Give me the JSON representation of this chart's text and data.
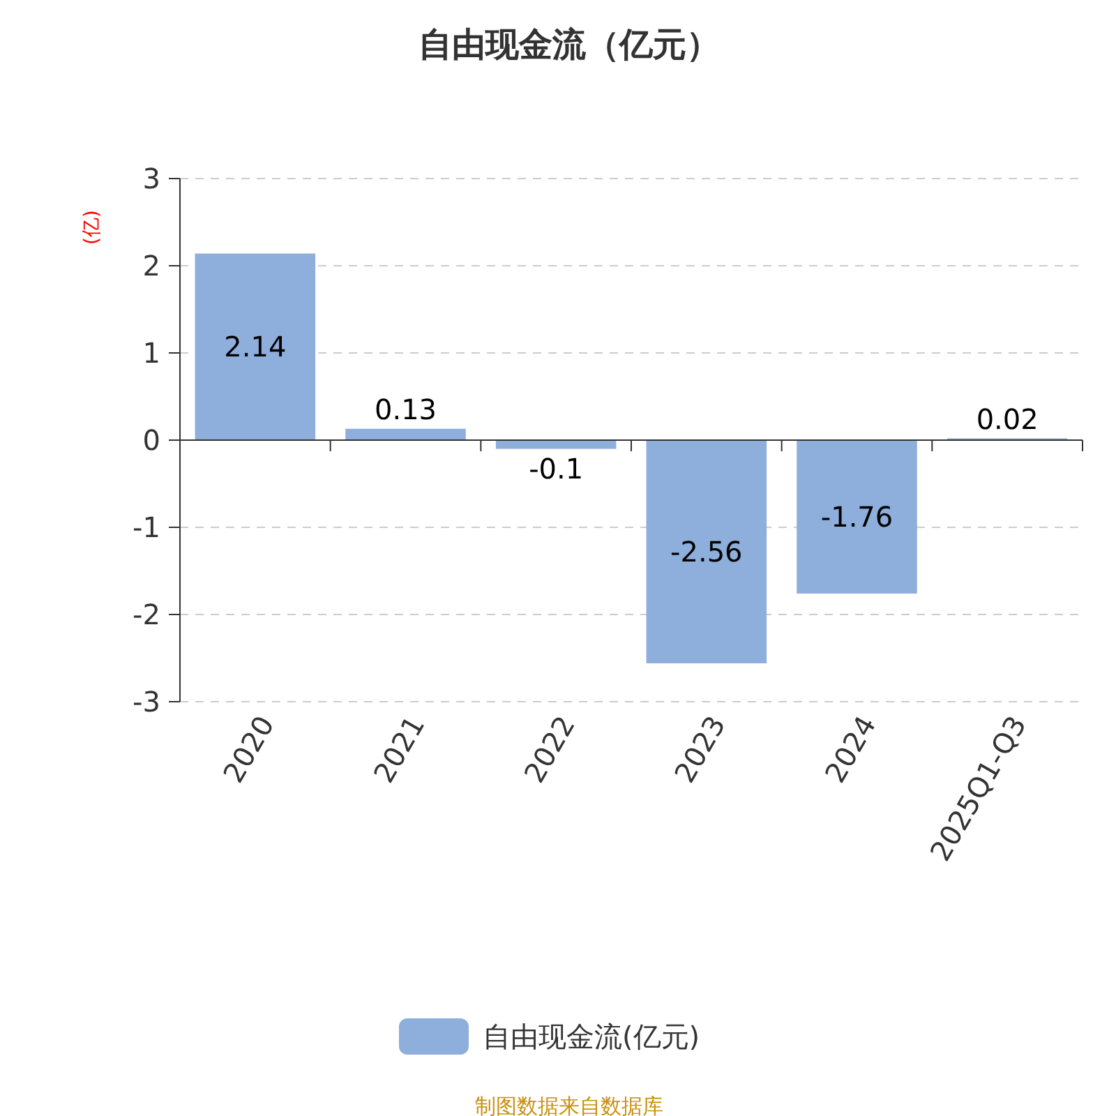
{
  "chart_data": {
    "type": "bar",
    "title": "自由现金流（亿元）",
    "ylabel": "(亿)",
    "categories": [
      "2020",
      "2021",
      "2022",
      "2023",
      "2024",
      "2025Q1-Q3"
    ],
    "series": [
      {
        "name": "自由现金流(亿元)",
        "color": "#8eaedb",
        "values": [
          2.14,
          0.13,
          -0.1,
          -2.56,
          -1.76,
          0.02
        ]
      }
    ],
    "ylim": [
      -3,
      3
    ],
    "yticks": [
      -3,
      -2,
      -1,
      0,
      1,
      2,
      3
    ],
    "grid": "y",
    "legend": "bottom",
    "data_labels": true,
    "annotations": [
      "制图数据来自数据库"
    ]
  }
}
